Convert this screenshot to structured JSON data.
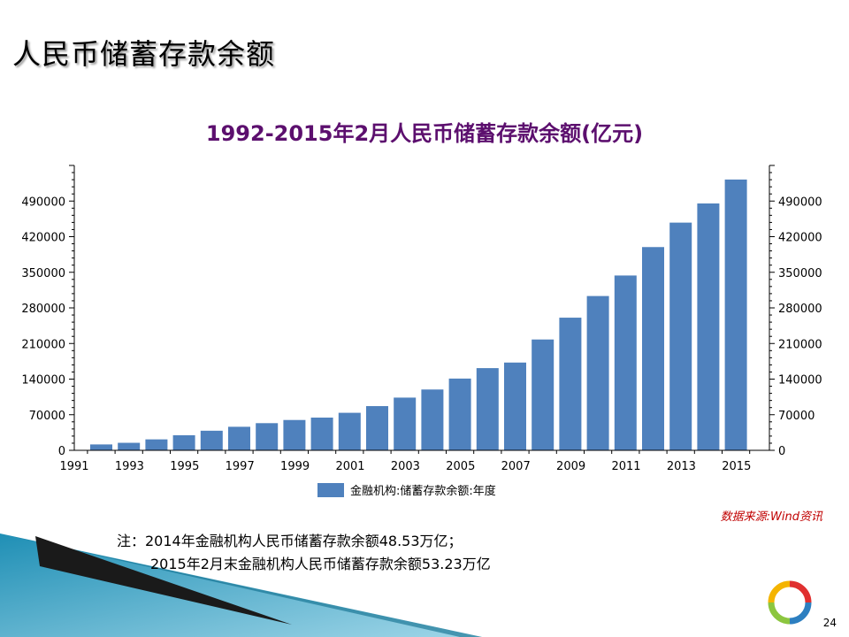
{
  "slide": {
    "title": "人民币储蓄存款余额",
    "source": "数据来源:Wind资讯",
    "note_line1": "注：2014年金融机构人民币储蓄存款余额48.53万亿；",
    "note_line2": "2015年2月末金融机构人民币储蓄存款余额53.23万亿",
    "page_number": "24"
  },
  "colors": {
    "bar": "#4f81bd",
    "title": "#5c0f6e",
    "source": "#c00000"
  },
  "chart_data": {
    "type": "bar",
    "title": "1992-2015年2月人民币储蓄存款余额(亿元)",
    "categories": [
      "1992",
      "1993",
      "1994",
      "1995",
      "1996",
      "1997",
      "1998",
      "1999",
      "2000",
      "2001",
      "2002",
      "2003",
      "2004",
      "2005",
      "2006",
      "2007",
      "2008",
      "2009",
      "2010",
      "2011",
      "2012",
      "2013",
      "2014",
      "2015"
    ],
    "x_tick_labels": [
      "1991",
      "1993",
      "1995",
      "1997",
      "1999",
      "2001",
      "2003",
      "2005",
      "2007",
      "2009",
      "2011",
      "2013",
      "2015"
    ],
    "series": [
      {
        "name": "金融机构:储蓄存款余额:年度",
        "values": [
          11545,
          14764,
          21519,
          29662,
          38521,
          46280,
          53408,
          59622,
          64332,
          73762,
          86911,
          103618,
          119555,
          141051,
          161587,
          172534,
          217885,
          260772,
          303302,
          343636,
          399551,
          447602,
          485300,
          532300
        ]
      }
    ],
    "y_ticks": [
      0,
      70000,
      140000,
      210000,
      280000,
      350000,
      420000,
      490000
    ],
    "ylim": [
      0,
      560000
    ],
    "y_axes": "both sides",
    "grid": false,
    "legend": "bottom-center"
  }
}
